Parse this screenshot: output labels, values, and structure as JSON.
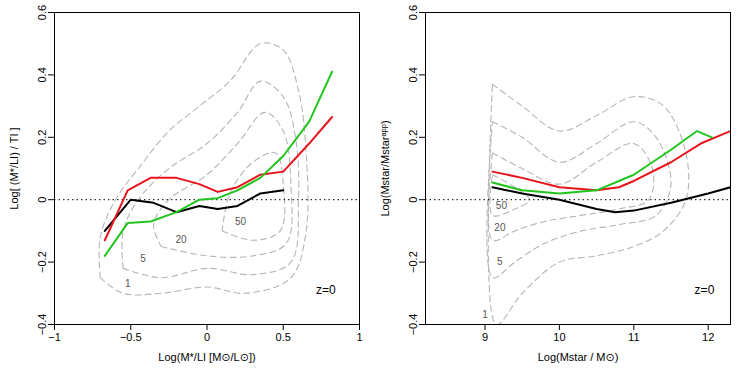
{
  "chart_data": [
    {
      "type": "line",
      "x_label": "Log(M*/LI [M⊙/L⊙])",
      "y_label": "Log[ (M*/LI) / TI ]",
      "xlim": [
        -1,
        1
      ],
      "xticks": [
        -1,
        -0.5,
        0,
        0.5,
        1
      ],
      "ylim": [
        -0.4,
        0.6
      ],
      "yticks": [
        -0.4,
        -0.2,
        0,
        0.2,
        0.4,
        0.6
      ],
      "reference_y": 0,
      "annotations": [
        {
          "text": "z=0",
          "x": 0.78,
          "y": -0.29
        }
      ],
      "series": [
        {
          "color": "#000000",
          "x": [
            -0.67,
            -0.5,
            -0.35,
            -0.2,
            -0.05,
            0.07,
            0.2,
            0.35,
            0.5
          ],
          "values": [
            -0.1,
            0.0,
            -0.01,
            -0.04,
            -0.02,
            -0.03,
            -0.02,
            0.02,
            0.03
          ]
        },
        {
          "color": "#e8141b",
          "x": [
            -0.67,
            -0.52,
            -0.37,
            -0.2,
            -0.05,
            0.07,
            0.2,
            0.35,
            0.5,
            0.67,
            0.82
          ],
          "values": [
            -0.13,
            0.03,
            0.07,
            0.07,
            0.05,
            0.025,
            0.04,
            0.08,
            0.09,
            0.18,
            0.265
          ]
        },
        {
          "color": "#22c41e",
          "x": [
            -0.67,
            -0.52,
            -0.37,
            -0.2,
            -0.05,
            0.07,
            0.2,
            0.35,
            0.5,
            0.67,
            0.82
          ],
          "values": [
            -0.18,
            -0.075,
            -0.07,
            -0.04,
            0.0,
            0.005,
            0.03,
            0.07,
            0.14,
            0.25,
            0.41
          ]
        }
      ],
      "contours": {
        "color": "#b5b5b5",
        "line_style": "dashed",
        "levels": [
          {
            "level": 1,
            "label_at": [
              -0.52,
              -0.27
            ],
            "x": [
              -0.7,
              -0.55,
              -0.3,
              0,
              0.25,
              0.55,
              0.65,
              0.65,
              0.6,
              0.5,
              0.35,
              0.15,
              -0.05,
              -0.25,
              -0.45,
              -0.6,
              -0.7,
              -0.7
            ],
            "y": [
              -0.25,
              -0.3,
              -0.3,
              -0.28,
              -0.3,
              -0.25,
              -0.1,
              0.15,
              0.35,
              0.48,
              0.5,
              0.38,
              0.3,
              0.22,
              0.1,
              0.0,
              -0.12,
              -0.25
            ]
          },
          {
            "level": 5,
            "label_at": [
              -0.42,
              -0.19
            ],
            "x": [
              -0.55,
              -0.3,
              0,
              0.3,
              0.55,
              0.6,
              0.58,
              0.5,
              0.35,
              0.2,
              0,
              -0.25,
              -0.45,
              -0.55,
              -0.55
            ],
            "y": [
              -0.22,
              -0.25,
              -0.22,
              -0.24,
              -0.2,
              0.0,
              0.2,
              0.33,
              0.38,
              0.28,
              0.18,
              0.1,
              0.0,
              -0.1,
              -0.22
            ]
          },
          {
            "level": 20,
            "label_at": [
              -0.17,
              -0.13
            ],
            "x": [
              -0.3,
              0,
              0.3,
              0.52,
              0.55,
              0.5,
              0.38,
              0.2,
              0,
              -0.25,
              -0.35,
              -0.3
            ],
            "y": [
              -0.15,
              -0.18,
              -0.18,
              -0.14,
              0.05,
              0.22,
              0.28,
              0.18,
              0.08,
              0.0,
              -0.08,
              -0.15
            ]
          },
          {
            "level": 50,
            "label_at": [
              0.22,
              -0.07
            ],
            "x": [
              0.1,
              0.3,
              0.48,
              0.5,
              0.45,
              0.3,
              0.15,
              0.1
            ],
            "y": [
              -0.1,
              -0.13,
              -0.1,
              0.05,
              0.15,
              0.12,
              0.02,
              -0.1
            ]
          }
        ]
      }
    },
    {
      "type": "line",
      "x_label": "Log(Mstar / M⊙)",
      "y_label": "Log(Mstar/Mstarᵃᵖᵖ)",
      "xlim": [
        8.2,
        12.3
      ],
      "xticks": [
        9,
        10,
        11,
        12
      ],
      "ylim": [
        -0.4,
        0.6
      ],
      "yticks": [
        -0.4,
        -0.2,
        0,
        0.2,
        0.4,
        0.6
      ],
      "reference_y": 0,
      "annotations": [
        {
          "text": "z=0",
          "x": 11.95,
          "y": -0.29
        }
      ],
      "series": [
        {
          "color": "#000000",
          "x": [
            9.1,
            9.5,
            10,
            10.5,
            10.75,
            11,
            11.5,
            12,
            12.3
          ],
          "values": [
            0.04,
            0.02,
            0.0,
            -0.03,
            -0.04,
            -0.035,
            -0.01,
            0.02,
            0.04
          ]
        },
        {
          "color": "#e8141b",
          "x": [
            9.1,
            9.5,
            10,
            10.5,
            10.8,
            11,
            11.5,
            11.9,
            12.3
          ],
          "values": [
            0.09,
            0.07,
            0.04,
            0.03,
            0.04,
            0.06,
            0.12,
            0.18,
            0.22
          ]
        },
        {
          "color": "#22c41e",
          "x": [
            9.1,
            9.5,
            10,
            10.5,
            11,
            11.5,
            11.85,
            12.05
          ],
          "values": [
            0.055,
            0.03,
            0.02,
            0.03,
            0.08,
            0.16,
            0.22,
            0.2
          ]
        }
      ],
      "contours": {
        "color": "#b5b5b5",
        "line_style": "dashed",
        "levels": [
          {
            "level": 1,
            "label_at": [
              9.0,
              -0.37
            ],
            "x": [
              9.1,
              9.5,
              10,
              10.5,
              11,
              11.4,
              11.7,
              11.7,
              11.4,
              11,
              10.5,
              10,
              9.5,
              9.15,
              9.1
            ],
            "y": [
              0.37,
              0.3,
              0.22,
              0.27,
              0.33,
              0.3,
              0.15,
              0.0,
              -0.1,
              -0.15,
              -0.18,
              -0.2,
              -0.3,
              -0.4,
              0.37
            ]
          },
          {
            "level": 5,
            "label_at": [
              9.2,
              -0.2
            ],
            "x": [
              9.1,
              9.5,
              10,
              10.5,
              11,
              11.3,
              11.5,
              11.3,
              10.8,
              10.3,
              9.8,
              9.4,
              9.1,
              9.1
            ],
            "y": [
              0.25,
              0.2,
              0.12,
              0.18,
              0.25,
              0.2,
              0.05,
              -0.05,
              -0.08,
              -0.1,
              -0.14,
              -0.2,
              -0.25,
              0.25
            ]
          },
          {
            "level": 20,
            "label_at": [
              9.2,
              -0.09
            ],
            "x": [
              9.1,
              9.5,
              10,
              10.5,
              11,
              11.25,
              11.2,
              10.8,
              10.3,
              9.8,
              9.4,
              9.1,
              9.1
            ],
            "y": [
              0.15,
              0.1,
              0.05,
              0.12,
              0.18,
              0.1,
              0.0,
              -0.03,
              -0.05,
              -0.07,
              -0.1,
              -0.13,
              0.15
            ]
          },
          {
            "level": 50,
            "label_at": [
              9.22,
              -0.02
            ],
            "x": [
              9.1,
              9.4,
              9.6,
              9.4,
              9.1,
              9.1
            ],
            "y": [
              0.08,
              0.04,
              0.0,
              -0.03,
              -0.05,
              0.08
            ]
          }
        ]
      }
    }
  ]
}
